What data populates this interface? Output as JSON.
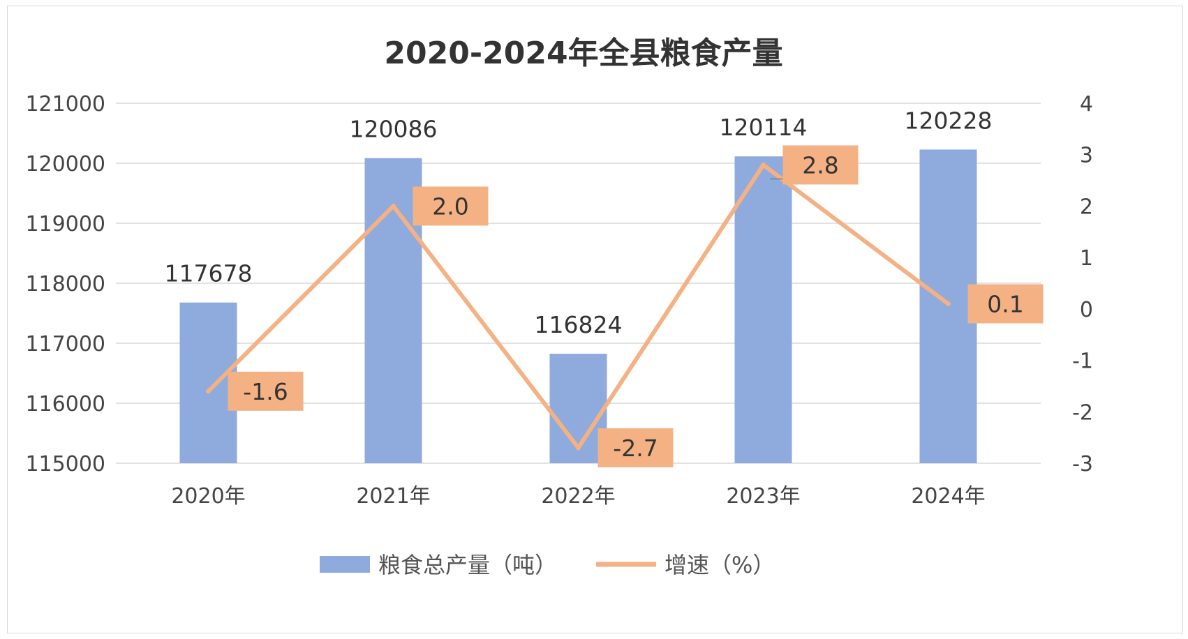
{
  "chart_data": {
    "type": "bar",
    "title": "2020-2024年全县粮食产量",
    "categories": [
      "2020年",
      "2021年",
      "2022年",
      "2023年",
      "2024年"
    ],
    "series": [
      {
        "name": "粮食总产量（吨）",
        "type": "bar",
        "axis": "left",
        "values": [
          117678,
          120086,
          116824,
          120114,
          120228
        ],
        "color": "#8faadc"
      },
      {
        "name": "增速（%）",
        "type": "line",
        "axis": "right",
        "values": [
          -1.6,
          2.0,
          -2.7,
          2.8,
          0.1
        ],
        "labels": [
          "-1.6",
          "2.0",
          "-2.7",
          "2.8",
          "0.1"
        ],
        "color": "#f4b183"
      }
    ],
    "y_left": {
      "min": 115000,
      "max": 121000,
      "ticks": [
        "115000",
        "116000",
        "117000",
        "118000",
        "119000",
        "120000",
        "121000"
      ]
    },
    "y_right": {
      "min": -3,
      "max": 4,
      "ticks": [
        "-3",
        "-2",
        "-1",
        "0",
        "1",
        "2",
        "3",
        "4"
      ]
    },
    "grid": true,
    "legend_position": "bottom",
    "label_color": "#f4b183"
  }
}
